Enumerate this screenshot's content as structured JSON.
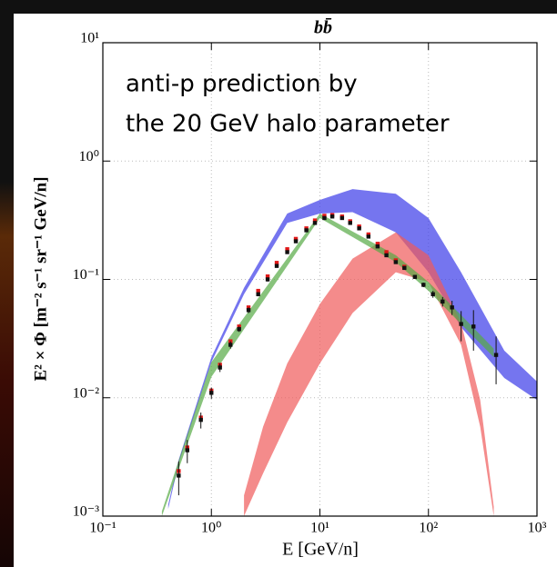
{
  "chart_data": {
    "type": "scatter",
    "title": "bb̄",
    "xlabel": "E [GeV/n]",
    "ylabel": "E² × Φ [m⁻² s⁻¹ sr⁻¹ GeV/n]",
    "annotation": [
      "anti-p prediction by",
      "the 20 GeV halo parameter"
    ],
    "xscale": "log",
    "yscale": "log",
    "grid": true,
    "xlim": [
      0.1,
      1000
    ],
    "ylim": [
      0.001,
      10
    ],
    "xticks": [
      {
        "value": 0.1,
        "label": "10⁻¹"
      },
      {
        "value": 1,
        "label": "10⁰"
      },
      {
        "value": 10,
        "label": "10¹"
      },
      {
        "value": 100,
        "label": "10²"
      },
      {
        "value": 1000,
        "label": "10³"
      }
    ],
    "yticks": [
      {
        "value": 0.001,
        "label": "10⁻³"
      },
      {
        "value": 0.01,
        "label": "10⁻²"
      },
      {
        "value": 0.1,
        "label": "10⁻¹"
      },
      {
        "value": 1,
        "label": "10⁰"
      },
      {
        "value": 10,
        "label": "10¹"
      }
    ],
    "bands": [
      {
        "color": "#3a3ae8",
        "x": [
          0.4,
          0.5,
          1,
          2,
          5,
          10,
          20,
          50,
          100,
          200,
          500,
          1000
        ],
        "lower": [
          0.00115,
          0.0028,
          0.02,
          0.075,
          0.3,
          0.36,
          0.37,
          0.25,
          0.115,
          0.0395,
          0.0147,
          0.0096
        ],
        "upper": [
          0.00125,
          0.003,
          0.022,
          0.085,
          0.36,
          0.47,
          0.58,
          0.53,
          0.33,
          0.115,
          0.025,
          0.0137
        ]
      },
      {
        "color": "#f05a5a",
        "x": [
          2,
          3,
          5,
          10,
          20,
          50,
          100,
          200,
          300,
          400
        ],
        "lower": [
          0.001,
          0.0023,
          0.0062,
          0.0195,
          0.052,
          0.115,
          0.095,
          0.028,
          0.0057,
          0.001
        ],
        "upper": [
          0.0015,
          0.0057,
          0.0195,
          0.062,
          0.15,
          0.25,
          0.16,
          0.043,
          0.0096,
          0.0012
        ]
      },
      {
        "color": "#55aa44",
        "x": [
          0.35,
          1,
          10,
          50,
          100,
          200,
          400
        ],
        "lower": [
          0.001,
          0.015,
          0.33,
          0.14,
          0.08,
          0.042,
          0.022
        ],
        "upper": [
          0.0011,
          0.02,
          0.36,
          0.16,
          0.095,
          0.05,
          0.026
        ]
      }
    ],
    "series": [
      {
        "color": "#e01818",
        "x": [
          0.5,
          0.6,
          0.8,
          1.0,
          1.2,
          1.5,
          1.8,
          2.2,
          2.7,
          3.3,
          4,
          5,
          6,
          7.5,
          9,
          11,
          13,
          16,
          19,
          23,
          28,
          34,
          41,
          50,
          60
        ],
        "values": [
          0.0024,
          0.0038,
          0.0068,
          0.0115,
          0.019,
          0.03,
          0.04,
          0.058,
          0.08,
          0.106,
          0.138,
          0.18,
          0.22,
          0.27,
          0.315,
          0.345,
          0.35,
          0.34,
          0.31,
          0.28,
          0.24,
          0.2,
          0.17,
          0.145,
          0.128
        ]
      },
      {
        "color": "#111111",
        "x": [
          0.5,
          0.6,
          0.8,
          1.0,
          1.2,
          1.5,
          1.8,
          2.2,
          2.7,
          3.3,
          4,
          5,
          6,
          7.5,
          9,
          11,
          13,
          16,
          19,
          23,
          28,
          34,
          41,
          50,
          60,
          75,
          90,
          110,
          135,
          165,
          200,
          260,
          420
        ],
        "values": [
          0.0022,
          0.0036,
          0.0065,
          0.011,
          0.018,
          0.028,
          0.038,
          0.055,
          0.075,
          0.1,
          0.13,
          0.17,
          0.21,
          0.26,
          0.3,
          0.33,
          0.34,
          0.33,
          0.3,
          0.27,
          0.23,
          0.19,
          0.16,
          0.14,
          0.125,
          0.105,
          0.09,
          0.075,
          0.065,
          0.058,
          0.042,
          0.04,
          0.023
        ],
        "errors": [
          0.0007,
          0.0008,
          0.001,
          0.0012,
          0.0015,
          0.002,
          0.002,
          0.003,
          0.003,
          0.004,
          0.004,
          0.005,
          0.005,
          0.006,
          0.006,
          0.007,
          0.007,
          0.007,
          0.006,
          0.006,
          0.005,
          0.005,
          0.004,
          0.004,
          0.004,
          0.004,
          0.004,
          0.005,
          0.006,
          0.008,
          0.012,
          0.015,
          0.01
        ]
      }
    ]
  }
}
